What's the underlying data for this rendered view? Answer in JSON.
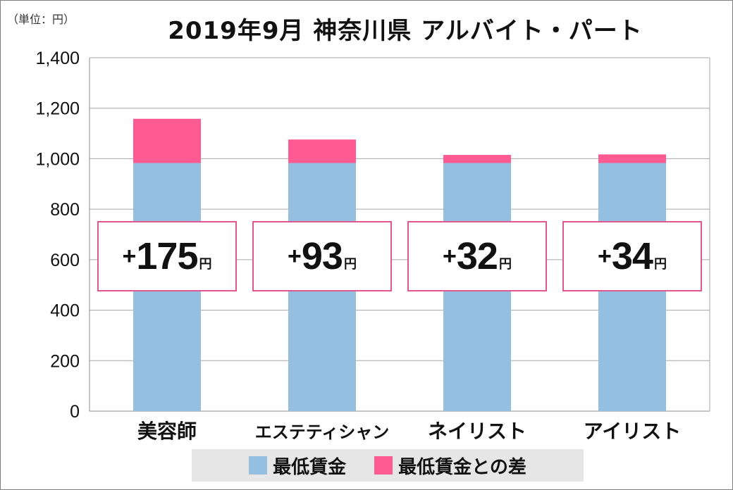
{
  "unit_label": "（単位：円）",
  "title": "2019年9月 神奈川県 アルバイト・パート",
  "colors": {
    "base": "#94bfe0",
    "diff": "#ff5a92",
    "box_border": "#e0578f"
  },
  "chart_data": {
    "type": "bar",
    "stacked": true,
    "categories": [
      "美容師",
      "エステティシャン",
      "ネイリスト",
      "アイリスト"
    ],
    "series": [
      {
        "name": "最低賃金",
        "values": [
          983,
          983,
          983,
          983
        ]
      },
      {
        "name": "最低賃金との差",
        "values": [
          175,
          93,
          32,
          34
        ]
      }
    ],
    "ylim": [
      0,
      1400
    ],
    "yticks": [
      0,
      200,
      400,
      600,
      800,
      1000,
      1200,
      1400
    ],
    "ytick_labels": [
      "0",
      "200",
      "400",
      "600",
      "800",
      "1,000",
      "1,200",
      "1,400"
    ],
    "grid": true,
    "legend_position": "bottom",
    "annotations": [
      {
        "plus": "+",
        "value": "175",
        "unit": "円"
      },
      {
        "plus": "+",
        "value": "93",
        "unit": "円"
      },
      {
        "plus": "+",
        "value": "32",
        "unit": "円"
      },
      {
        "plus": "+",
        "value": "34",
        "unit": "円"
      }
    ]
  }
}
